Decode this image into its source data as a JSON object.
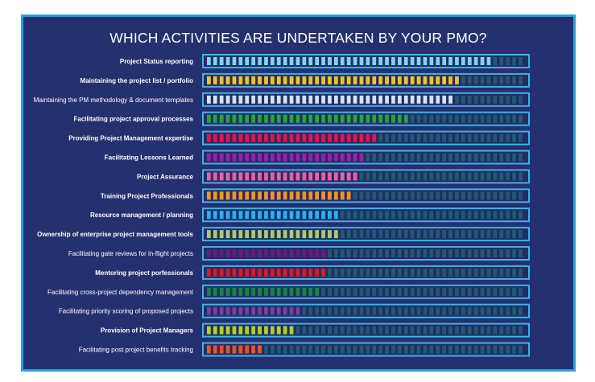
{
  "chart_data": {
    "type": "bar",
    "title": "WHICH ACTIVITIES ARE UNDERTAKEN BY YOUR PMO?",
    "xlabel": "",
    "ylabel": "",
    "scale_segments": 50,
    "categories": [
      "Project Status reporting",
      "Maintaining the project list / portfolio",
      "Maintaining the PM methodology & document templates",
      "Facilitating project approval processes",
      "Providing Project Management expertise",
      "Facilitating Lessons Learned",
      "Project Assurance",
      "Training Project Professionals",
      "Resource management / planning",
      "Ownership of enterprise project management tools",
      "Facilitating gate reviews for in-flight projects",
      "Mentoring project porfessionals",
      "Facilitating cross-project dependency management",
      "Facilitating priority scoring of proposed projects",
      "Provision of Project Managers",
      "Facilitating post project benefits tracking"
    ],
    "values": [
      45,
      40,
      39,
      32,
      27,
      25,
      24,
      23,
      21,
      21,
      19,
      19,
      18,
      15,
      14,
      9
    ],
    "bold": [
      true,
      true,
      false,
      true,
      true,
      true,
      true,
      true,
      true,
      true,
      false,
      true,
      false,
      false,
      true,
      false
    ],
    "colors": [
      "#7fd4f0",
      "#f5c518",
      "#cfe6f3",
      "#1faa3c",
      "#f0104c",
      "#9b1fa8",
      "#f55ea3",
      "#f5951f",
      "#23b4f0",
      "#a3cf6a",
      "#6a1a7e",
      "#e8161c",
      "#128a3e",
      "#7a3ea0",
      "#a8d81e",
      "#f0541e"
    ],
    "empty_color": "#1f5b6e",
    "border_color": "#3fb2e6"
  }
}
